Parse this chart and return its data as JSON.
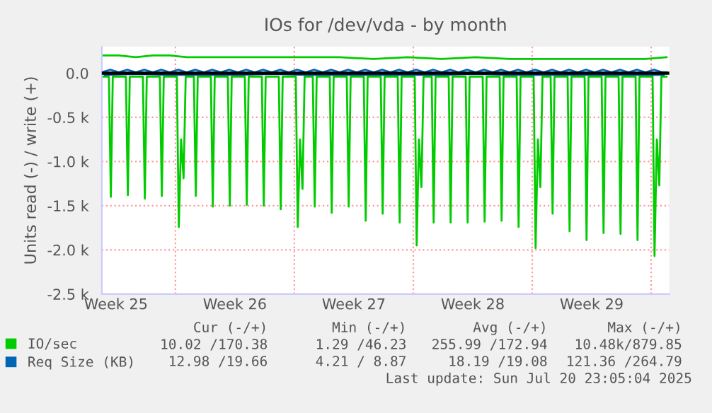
{
  "chart_data": {
    "type": "line",
    "title": "IOs for /dev/vda - by month",
    "ylabel": "Units read (-) / write (+)",
    "xlim": [
      "2025-06-17T16:00",
      "2025-07-21T01:36"
    ],
    "ylim": [
      -2500,
      300
    ],
    "xticks": [
      {
        "value": "2025-06-18T12:00",
        "label": "Week 25"
      },
      {
        "value": "2025-06-22",
        "label": null
      },
      {
        "value": "2025-06-25T12:00",
        "label": "Week 26"
      },
      {
        "value": "2025-06-29",
        "label": null
      },
      {
        "value": "2025-07-02T12:00",
        "label": "Week 27"
      },
      {
        "value": "2025-07-06",
        "label": null
      },
      {
        "value": "2025-07-09T12:00",
        "label": "Week 28"
      },
      {
        "value": "2025-07-13",
        "label": null
      },
      {
        "value": "2025-07-16T12:00",
        "label": "Week 29"
      },
      {
        "value": "2025-07-20",
        "label": null
      }
    ],
    "yticks": [
      {
        "value": -2500,
        "label": "-2.5 k"
      },
      {
        "value": -2000,
        "label": "-2.0 k"
      },
      {
        "value": -1500,
        "label": "-1.5 k"
      },
      {
        "value": -1000,
        "label": "-1.0 k"
      },
      {
        "value": -500,
        "label": "-0.5 k"
      },
      {
        "value": 0,
        "label": "0.0"
      }
    ],
    "grid": true,
    "legend": "bottom",
    "ref_lines": [
      {
        "axis": "y",
        "value": 0,
        "color": "#000000"
      }
    ],
    "series": [
      {
        "name": "IO/sec",
        "color": "#00cc00",
        "x": [
          "2025-06-17T16:00",
          "2025-06-18T02:00",
          "2025-06-18T04:45",
          "2025-06-18T07:30",
          "2025-06-19T02:00",
          "2025-06-19T04:45",
          "2025-06-19T07:30",
          "2025-06-20T02:00",
          "2025-06-20T04:45",
          "2025-06-20T07:30",
          "2025-06-21T02:00",
          "2025-06-21T04:45",
          "2025-06-21T07:30",
          "2025-06-22T02:00",
          "2025-06-22T04:45",
          "2025-06-22T08:00",
          "2025-06-22T11:30",
          "2025-06-22T14:30",
          "2025-06-23T02:00",
          "2025-06-23T04:45",
          "2025-06-23T07:30",
          "2025-06-24T02:00",
          "2025-06-24T04:45",
          "2025-06-24T07:30",
          "2025-06-25T02:00",
          "2025-06-25T04:45",
          "2025-06-25T07:30",
          "2025-06-26T02:00",
          "2025-06-26T04:45",
          "2025-06-26T07:30",
          "2025-06-27T02:00",
          "2025-06-27T04:45",
          "2025-06-27T07:30",
          "2025-06-28T02:00",
          "2025-06-28T04:45",
          "2025-06-28T07:30",
          "2025-06-29T02:00",
          "2025-06-29T04:45",
          "2025-06-29T08:00",
          "2025-06-29T11:30",
          "2025-06-29T14:30",
          "2025-06-30T02:00",
          "2025-06-30T04:45",
          "2025-06-30T07:30",
          "2025-07-01T02:00",
          "2025-07-01T04:45",
          "2025-07-01T07:30",
          "2025-07-02T02:00",
          "2025-07-02T04:45",
          "2025-07-02T07:30",
          "2025-07-03T02:00",
          "2025-07-03T04:45",
          "2025-07-03T07:30",
          "2025-07-04T02:00",
          "2025-07-04T04:45",
          "2025-07-04T07:30",
          "2025-07-05T02:00",
          "2025-07-05T04:45",
          "2025-07-05T07:30",
          "2025-07-06T02:00",
          "2025-07-06T04:45",
          "2025-07-06T08:00",
          "2025-07-06T11:30",
          "2025-07-06T14:30",
          "2025-07-07T02:00",
          "2025-07-07T04:45",
          "2025-07-07T07:30",
          "2025-07-08T02:00",
          "2025-07-08T04:45",
          "2025-07-08T07:30",
          "2025-07-09T02:00",
          "2025-07-09T04:45",
          "2025-07-09T07:30",
          "2025-07-10T02:00",
          "2025-07-10T04:45",
          "2025-07-10T07:30",
          "2025-07-11T02:00",
          "2025-07-11T04:45",
          "2025-07-11T07:30",
          "2025-07-12T02:00",
          "2025-07-12T04:45",
          "2025-07-12T07:30",
          "2025-07-13T02:00",
          "2025-07-13T04:45",
          "2025-07-13T08:00",
          "2025-07-13T11:30",
          "2025-07-13T14:30",
          "2025-07-14T02:00",
          "2025-07-14T04:45",
          "2025-07-14T07:30",
          "2025-07-15T02:00",
          "2025-07-15T04:45",
          "2025-07-15T07:30",
          "2025-07-16T02:00",
          "2025-07-16T04:45",
          "2025-07-16T07:30",
          "2025-07-17T02:00",
          "2025-07-17T04:45",
          "2025-07-17T07:30",
          "2025-07-18T02:00",
          "2025-07-18T04:45",
          "2025-07-18T07:30",
          "2025-07-19T02:00",
          "2025-07-19T04:45",
          "2025-07-19T07:30",
          "2025-07-20T02:00",
          "2025-07-20T04:45",
          "2025-07-20T08:00",
          "2025-07-20T11:30",
          "2025-07-20T14:30",
          "2025-07-20T22:00"
        ],
        "values": [
          -40,
          -40,
          -1400,
          -40,
          -40,
          -1380,
          -40,
          -40,
          -1420,
          -40,
          -40,
          -1390,
          -40,
          -40,
          -1740,
          -750,
          -1190,
          -40,
          -40,
          -1390,
          -40,
          -40,
          -1510,
          -40,
          -40,
          -1500,
          -40,
          -40,
          -1490,
          -40,
          -40,
          -1500,
          -40,
          -40,
          -1540,
          -40,
          -40,
          -1740,
          -750,
          -1310,
          -40,
          -40,
          -1510,
          -40,
          -40,
          -1580,
          -40,
          -40,
          -1510,
          -40,
          -40,
          -1670,
          -40,
          -40,
          -1590,
          -40,
          -40,
          -1690,
          -40,
          -40,
          -1950,
          -750,
          -1290,
          -40,
          -40,
          -1690,
          -40,
          -40,
          -1690,
          -40,
          -40,
          -1690,
          -40,
          -40,
          -1680,
          -40,
          -40,
          -1670,
          -40,
          -40,
          -1740,
          -40,
          -40,
          -1980,
          -750,
          -1290,
          -40,
          -40,
          -1590,
          -40,
          -40,
          -1790,
          -40,
          -40,
          -1890,
          -40,
          -40,
          -1810,
          -40,
          -40,
          -1820,
          -40,
          -40,
          -1890,
          -40,
          -40,
          -2070,
          -750,
          -1270,
          -40,
          -40
        ]
      },
      {
        "color": "#00cc00",
        "x": [
          "2025-06-17T16:00",
          "2025-06-18T16:00",
          "2025-06-19T16:00",
          "2025-06-20T16:00",
          "2025-06-21T16:00",
          "2025-06-22T16:00",
          "2025-06-23T16:00",
          "2025-06-24T16:00",
          "2025-06-25T16:00",
          "2025-06-27T16:00",
          "2025-06-29T16:00",
          "2025-07-01T16:00",
          "2025-07-03T16:00",
          "2025-07-05T16:00",
          "2025-07-07T16:00",
          "2025-07-09T16:00",
          "2025-07-11T16:00",
          "2025-07-13T16:00",
          "2025-07-15T16:00",
          "2025-07-17T16:00",
          "2025-07-19T16:00",
          "2025-07-20T22:00"
        ],
        "values": [
          200,
          200,
          180,
          200,
          200,
          180,
          180,
          180,
          180,
          180,
          180,
          180,
          160,
          180,
          160,
          180,
          160,
          160,
          160,
          160,
          160,
          180
        ]
      },
      {
        "name": "Req Size (KB)",
        "color": "#0066b3",
        "x": [
          "2025-06-17T20:00",
          "2025-06-19T16:00",
          "2025-06-21T16:00",
          "2025-06-23T16:00",
          "2025-06-25T16:00",
          "2025-06-27T16:00",
          "2025-06-29T16:00",
          "2025-07-01T16:00",
          "2025-07-03T16:00",
          "2025-07-05T16:00",
          "2025-07-07T16:00",
          "2025-07-09T16:00",
          "2025-07-11T16:00",
          "2025-07-13T16:00",
          "2025-07-15T16:00",
          "2025-07-17T16:00",
          "2025-07-19T16:00",
          "2025-07-20T18:00"
        ],
        "values": [
          -20,
          -10,
          -20,
          -20,
          -20,
          -10,
          -20,
          -20,
          -20,
          -20,
          -20,
          -10,
          -20,
          -20,
          -20,
          -20,
          -20,
          -20
        ]
      },
      {
        "color": "#0066b3",
        "x": [
          "2025-06-17T16:00",
          "2025-06-18T04:00",
          "2025-06-18T16:00",
          "2025-06-19T04:00",
          "2025-06-19T16:00",
          "2025-06-20T04:00",
          "2025-06-20T16:00",
          "2025-06-21T04:00",
          "2025-06-21T16:00",
          "2025-06-22T04:00",
          "2025-06-22T16:00",
          "2025-06-23T04:00",
          "2025-06-23T16:00",
          "2025-06-24T04:00",
          "2025-06-24T16:00",
          "2025-06-25T04:00",
          "2025-06-25T16:00",
          "2025-06-26T04:00",
          "2025-06-26T16:00",
          "2025-06-27T04:00",
          "2025-06-27T16:00",
          "2025-06-28T04:00",
          "2025-06-28T16:00",
          "2025-06-29T04:00",
          "2025-06-29T16:00",
          "2025-06-30T04:00",
          "2025-06-30T16:00",
          "2025-07-01T04:00",
          "2025-07-01T16:00",
          "2025-07-02T04:00",
          "2025-07-02T16:00",
          "2025-07-03T04:00",
          "2025-07-03T16:00",
          "2025-07-04T04:00",
          "2025-07-04T16:00",
          "2025-07-05T04:00",
          "2025-07-05T16:00",
          "2025-07-06T04:00",
          "2025-07-06T16:00",
          "2025-07-07T04:00",
          "2025-07-07T16:00",
          "2025-07-08T04:00",
          "2025-07-08T16:00",
          "2025-07-09T04:00",
          "2025-07-09T16:00",
          "2025-07-10T04:00",
          "2025-07-10T16:00",
          "2025-07-11T04:00",
          "2025-07-11T16:00",
          "2025-07-12T04:00",
          "2025-07-12T16:00",
          "2025-07-13T04:00",
          "2025-07-13T16:00",
          "2025-07-14T04:00",
          "2025-07-14T16:00",
          "2025-07-15T04:00",
          "2025-07-15T16:00",
          "2025-07-16T04:00",
          "2025-07-16T16:00",
          "2025-07-17T04:00",
          "2025-07-17T16:00",
          "2025-07-18T04:00",
          "2025-07-18T16:00",
          "2025-07-19T04:00",
          "2025-07-19T16:00",
          "2025-07-20T04:00",
          "2025-07-20T16:00",
          "2025-07-20T22:00"
        ],
        "values": [
          10,
          40,
          10,
          40,
          10,
          40,
          10,
          40,
          10,
          40,
          10,
          40,
          10,
          40,
          10,
          40,
          10,
          40,
          10,
          40,
          10,
          40,
          10,
          40,
          10,
          40,
          10,
          40,
          10,
          40,
          10,
          40,
          10,
          40,
          10,
          40,
          10,
          40,
          10,
          40,
          10,
          40,
          10,
          40,
          10,
          40,
          10,
          40,
          10,
          40,
          10,
          40,
          10,
          40,
          10,
          40,
          10,
          40,
          10,
          40,
          10,
          40,
          10,
          40,
          10,
          40,
          10,
          10
        ]
      }
    ],
    "annotations": [
      "Cur (-/+)",
      "Min (-/+)",
      "Avg (-/+)",
      "Max (-/+)",
      "10.02 /170.38",
      "1.29 /46.23",
      "255.99 /172.94",
      "10.48k/879.85",
      "12.98 /19.66",
      "4.21 / 8.87",
      "18.19 /19.08",
      "121.36 /264.79",
      "Last update: Sun Jul 20 23:05:04 2025"
    ]
  }
}
